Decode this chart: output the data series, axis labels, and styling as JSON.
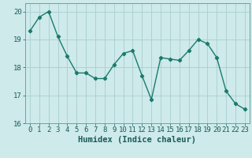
{
  "x": [
    0,
    1,
    2,
    3,
    4,
    5,
    6,
    7,
    8,
    9,
    10,
    11,
    12,
    13,
    14,
    15,
    16,
    17,
    18,
    19,
    20,
    21,
    22,
    23
  ],
  "y": [
    19.3,
    19.8,
    20.0,
    19.1,
    18.4,
    17.8,
    17.8,
    17.6,
    17.6,
    18.1,
    18.5,
    18.6,
    17.7,
    16.85,
    18.35,
    18.3,
    18.25,
    18.6,
    19.0,
    18.85,
    18.35,
    17.15,
    16.7,
    16.5
  ],
  "line_color": "#1a7a6e",
  "marker": "D",
  "marker_size": 2.2,
  "bg_color": "#ceeaea",
  "grid_color": "#aacece",
  "xlabel": "Humidex (Indice chaleur)",
  "xlim": [
    -0.5,
    23.5
  ],
  "ylim": [
    16,
    20.3
  ],
  "yticks": [
    16,
    17,
    18,
    19,
    20
  ],
  "xticks": [
    0,
    1,
    2,
    3,
    4,
    5,
    6,
    7,
    8,
    9,
    10,
    11,
    12,
    13,
    14,
    15,
    16,
    17,
    18,
    19,
    20,
    21,
    22,
    23
  ],
  "xlabel_fontsize": 7.5,
  "tick_fontsize": 6.5,
  "line_width": 1.0
}
